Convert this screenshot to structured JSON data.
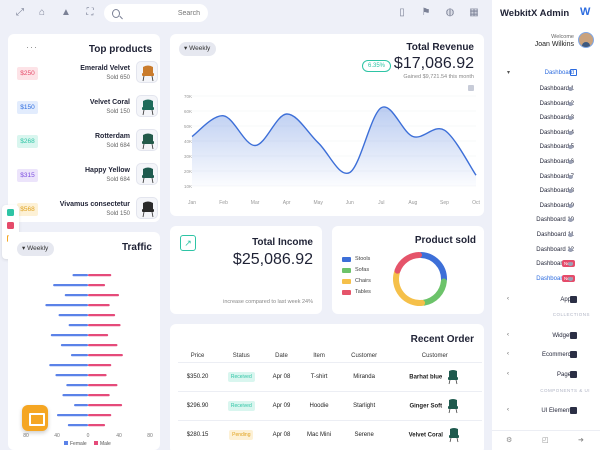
{
  "topbar": {
    "search_placeholder": "Search"
  },
  "top_products": {
    "title": "Top products",
    "items": [
      {
        "price": "$250",
        "name": "Emerald Velvet",
        "sold": "Sold 650",
        "badge_bg": "#fde3e7",
        "badge_fg": "#e54b6a",
        "chair_color": "#c97b2c"
      },
      {
        "price": "$150",
        "name": "Velvet Coral",
        "sold": "Sold 150",
        "badge_bg": "#e2ecfd",
        "badge_fg": "#2d6cdf",
        "chair_color": "#1f6b5a"
      },
      {
        "price": "$268",
        "name": "Rotterdam",
        "sold": "Sold 684",
        "badge_bg": "#d9f6ef",
        "badge_fg": "#2ec4a5",
        "chair_color": "#235a4a"
      },
      {
        "price": "$315",
        "name": "Happy Yellow",
        "sold": "Sold 684",
        "badge_bg": "#ece4fb",
        "badge_fg": "#7c4ddf",
        "chair_color": "#1e5a4e"
      },
      {
        "price": "$568",
        "name": "Vivamus consectetur",
        "sold": "Sold 150",
        "badge_bg": "#fdf1d6",
        "badge_fg": "#e0a21e",
        "chair_color": "#2a2a2a"
      }
    ]
  },
  "revenue": {
    "filter": "Weekly",
    "title": "Total Revenue",
    "change": "6.35%",
    "value": "$17,086.92",
    "subtitle": "Gained $9,721.54 this month"
  },
  "income": {
    "title": "Total Income",
    "value": "$25,086.92",
    "subtitle": "increase compared to last week 24%"
  },
  "product_sold": {
    "title": "Product sold",
    "legend": [
      {
        "label": "Stools",
        "color": "#3d6fd8"
      },
      {
        "label": "Sofas",
        "color": "#6cc36a"
      },
      {
        "label": "Chairs",
        "color": "#f5c04a"
      },
      {
        "label": "Tables",
        "color": "#e5546a"
      }
    ]
  },
  "traffic": {
    "filter": "Weekly",
    "title": "Traffic",
    "legend": [
      "Female",
      "Male"
    ]
  },
  "recent_order": {
    "title": "Recent Order",
    "headers": [
      "Price",
      "Status",
      "Date",
      "Item",
      "Customer",
      "Customer"
    ],
    "rows": [
      {
        "price": "$350.20",
        "status": "Received",
        "date": "Apr 08",
        "item": "T-shirt",
        "customer": "Miranda",
        "customer2": "Barhat blue",
        "status_bg": "#d9f6ef",
        "status_fg": "#2ec4a5"
      },
      {
        "price": "$296.90",
        "status": "Received",
        "date": "Apr 09",
        "item": "Hoodie",
        "customer": "Starlight",
        "customer2": "Ginger Soft",
        "status_bg": "#d9f6ef",
        "status_fg": "#2ec4a5"
      },
      {
        "price": "$280.15",
        "status": "Pending",
        "date": "Apr 08",
        "item": "Mac Mini",
        "customer": "Serene",
        "customer2": "Velvet Coral",
        "status_bg": "#fdf1d6",
        "status_fg": "#e0a21e"
      }
    ]
  },
  "sidebar": {
    "brand": "WebkitX Admin",
    "welcome": "Welcome",
    "user": "Joan Wilkins",
    "dashboard_label": "Dashboard",
    "dashboards": [
      "Dashboard 1",
      "Dashboard 2",
      "Dashboard 3",
      "Dashboard 4",
      "Dashboard 5",
      "Dashboard 6",
      "Dashboard 7",
      "Dashboard 8",
      "Dashboard 9",
      "Dashboard 10",
      "Dashboard 11",
      "Dashboard 12",
      "Dashboard 13",
      "Dashboard 14"
    ],
    "new_badge": "New",
    "apps": "Apps",
    "section_collections": "COLLECTIONS",
    "widgets": "Widgets",
    "ecommerce": "Ecommerce",
    "pages": "Pages",
    "section_components": "COMPONENTS & UI",
    "ui_elements": "UI Elements"
  },
  "chart_data": [
    {
      "type": "area",
      "categories": [
        "Jan",
        "Feb",
        "Mar",
        "Apr",
        "May",
        "Jun",
        "Jul",
        "Aug",
        "Sep",
        "Oct"
      ],
      "values": [
        55,
        78,
        45,
        80,
        48,
        15,
        87,
        55,
        62,
        12
      ],
      "ylim": [
        0,
        100
      ],
      "yticks": [
        "10K",
        "20K",
        "30K",
        "40K",
        "50K",
        "60K",
        "70K"
      ],
      "color": "#3d6fd8"
    },
    {
      "type": "pie",
      "labels": [
        "Stools",
        "Sofas",
        "Chairs",
        "Tables"
      ],
      "values": [
        26,
        22,
        32,
        20
      ],
      "colors": [
        "#3d6fd8",
        "#6cc36a",
        "#f5c04a",
        "#e5546a"
      ]
    },
    {
      "type": "bar",
      "orientation": "horizontal",
      "series": [
        {
          "name": "Female",
          "values": [
            -20,
            -45,
            -30,
            -55,
            -38,
            -25,
            -48,
            -35,
            -22,
            -50,
            -42,
            -28,
            -33,
            -18,
            -40,
            -26
          ],
          "color": "#5b82e8"
        },
        {
          "name": "Male",
          "values": [
            30,
            22,
            40,
            28,
            35,
            42,
            26,
            38,
            45,
            30,
            24,
            38,
            28,
            44,
            30,
            22
          ],
          "color": "#e54b7a"
        }
      ],
      "xticks": [
        "80",
        "40",
        "0",
        "40",
        "80"
      ],
      "xlim": [
        -80,
        80
      ]
    }
  ]
}
